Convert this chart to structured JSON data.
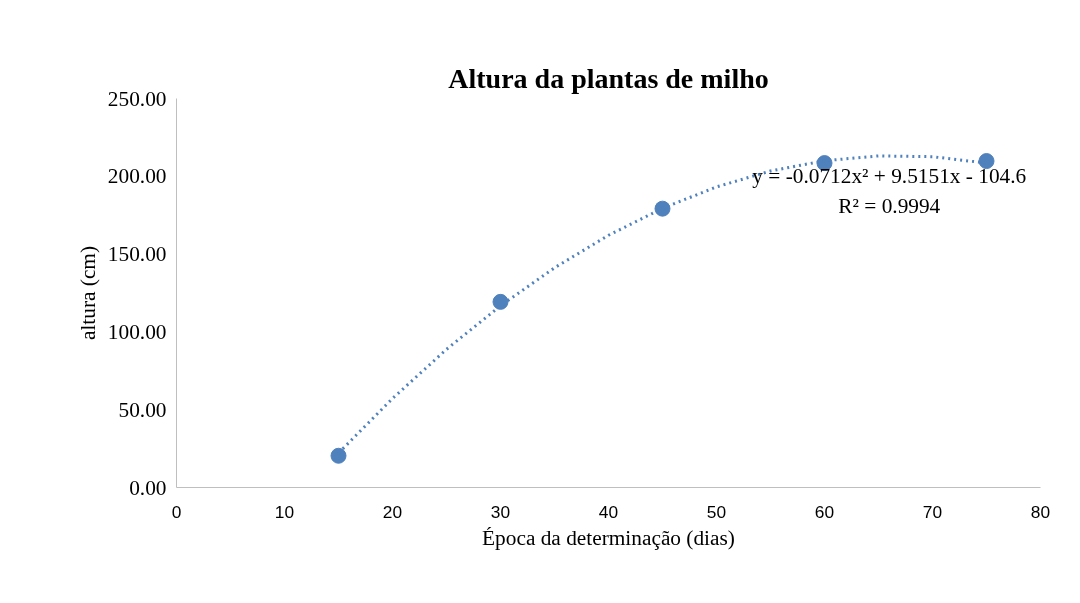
{
  "chart_data": {
    "type": "scatter",
    "title": "Altura da plantas de milho",
    "xlabel": "Época da determinação (dias)",
    "ylabel": "altura (cm)",
    "xlim": [
      0,
      80
    ],
    "xticks": [
      0,
      10,
      20,
      30,
      40,
      50,
      60,
      70,
      80
    ],
    "ylim": [
      0,
      250
    ],
    "yticks": [
      {
        "value": 0,
        "label": "0.00"
      },
      {
        "value": 50,
        "label": "50.00"
      },
      {
        "value": 100,
        "label": "100.00"
      },
      {
        "value": 150,
        "label": "150.00"
      },
      {
        "value": 200,
        "label": "200.00"
      },
      {
        "value": 250,
        "label": "250.00"
      }
    ],
    "grid": false,
    "series": [
      {
        "marker": "circle",
        "color": "#4f81bd",
        "x": [
          15,
          30,
          45,
          60,
          75
        ],
        "values": [
          20.4,
          119.3,
          179.2,
          208.5,
          209.8
        ]
      },
      {
        "type": "line",
        "color": "#4f81bd",
        "line_style": "dotted",
        "x": [
          15,
          20,
          25,
          30,
          35,
          40,
          45,
          50,
          55,
          60,
          65,
          70,
          75
        ],
        "values": [
          22.1,
          57.2,
          88.8,
          116.8,
          141.2,
          162.1,
          179.4,
          193.2,
          203.4,
          210.0,
          213.1,
          212.6,
          208.5
        ]
      }
    ],
    "annotations": [
      "y = -0.0712x² + 9.5151x - 104.6",
      "R² = 0.9994"
    ]
  }
}
